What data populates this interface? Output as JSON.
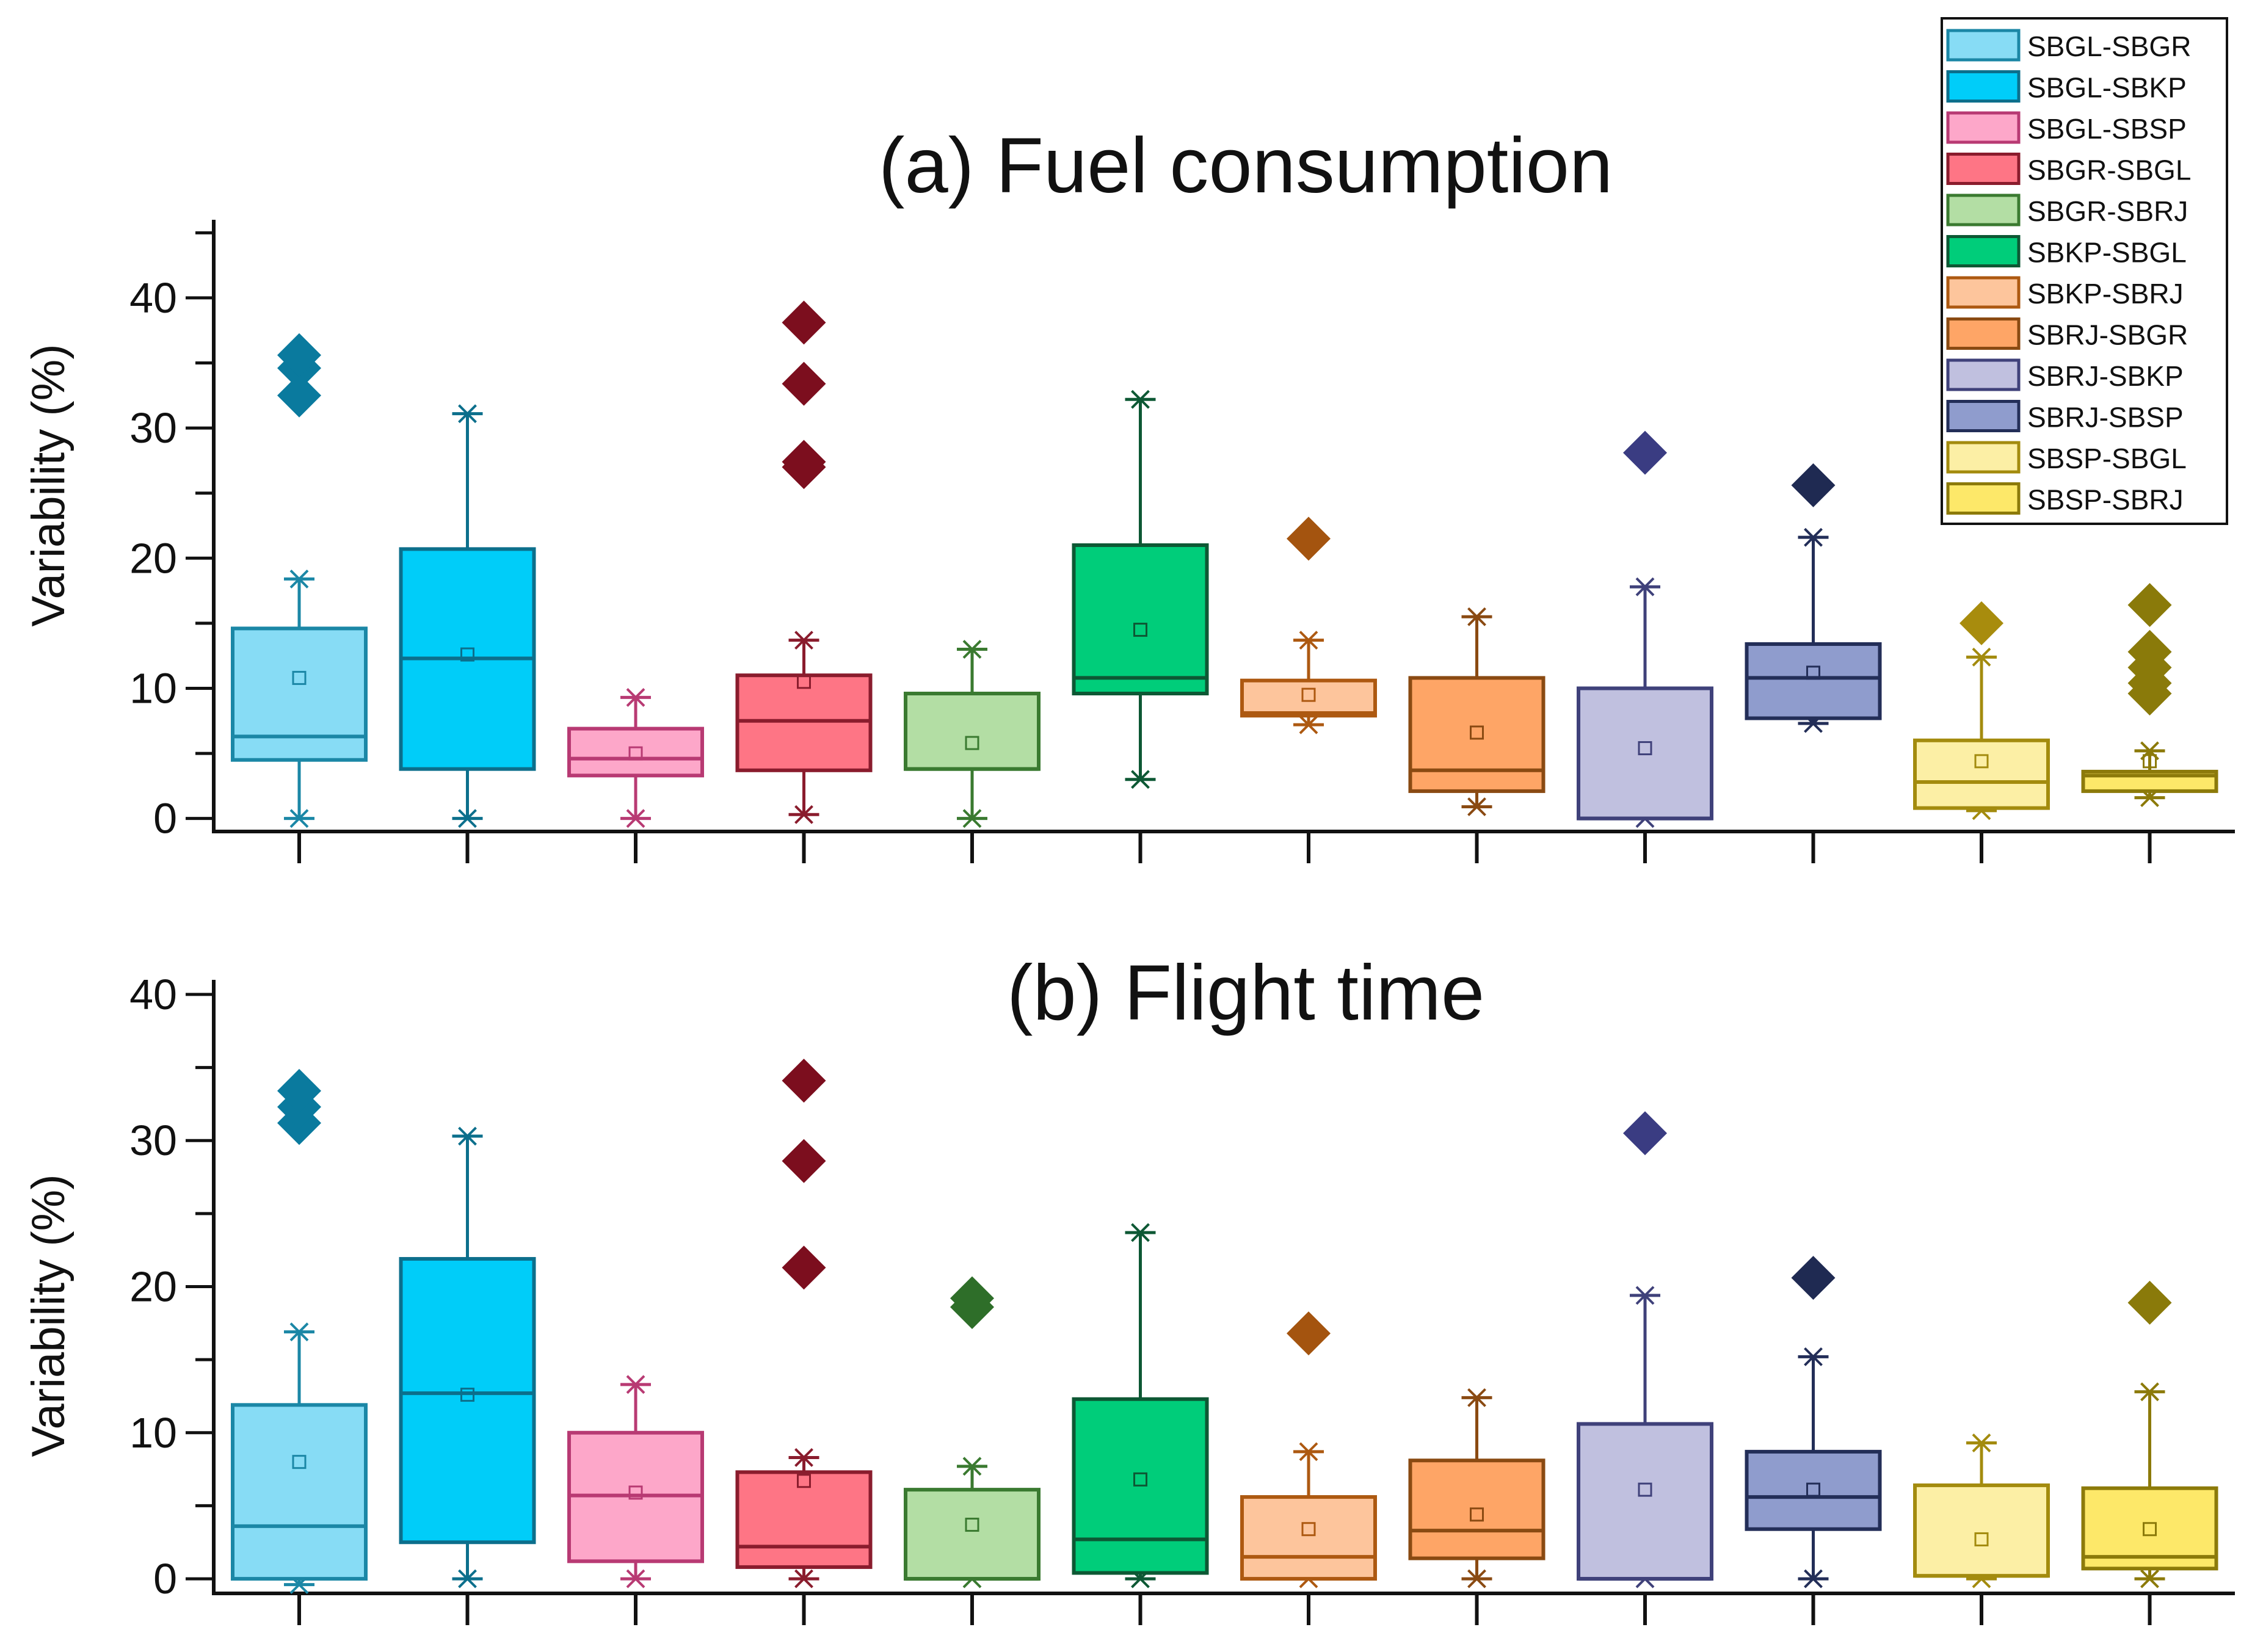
{
  "chart_data": [
    {
      "type": "box",
      "title": "(a) Fuel consumption",
      "xlabel": "",
      "ylabel": "Variability (%)",
      "ylim": [
        -1,
        46
      ],
      "yticks": [
        0,
        10,
        20,
        30,
        40
      ],
      "categories": [
        "SBGL-SBGR",
        "SBGL-SBKP",
        "SBGL-SBSP",
        "SBGR-SBGL",
        "SBGR-SBRJ",
        "SBKP-SBGL",
        "SBKP-SBRJ",
        "SBRJ-SBGR",
        "SBRJ-SBKP",
        "SBRJ-SBSP",
        "SBSP-SBGL",
        "SBSP-SBRJ"
      ],
      "boxes": [
        {
          "min": 0,
          "q1": 4.5,
          "median": 6.3,
          "q3": 14.6,
          "max": 18.4,
          "mean": 10.8,
          "outliers": [
            32.5,
            34.6,
            35.6
          ]
        },
        {
          "min": 0,
          "q1": 3.8,
          "median": 12.3,
          "q3": 20.7,
          "max": 31.1,
          "mean": 12.6,
          "outliers": []
        },
        {
          "min": 0,
          "q1": 3.3,
          "median": 4.6,
          "q3": 6.9,
          "max": 9.3,
          "mean": 5.0,
          "outliers": []
        },
        {
          "min": 0.3,
          "q1": 3.7,
          "median": 7.5,
          "q3": 11.0,
          "max": 13.7,
          "mean": 10.5,
          "outliers": [
            27.0,
            27.4,
            33.4,
            38.1
          ]
        },
        {
          "min": 0,
          "q1": 3.8,
          "median": 3.8,
          "q3": 9.6,
          "max": 13.0,
          "mean": 5.8,
          "outliers": []
        },
        {
          "min": 3.0,
          "q1": 9.6,
          "median": 10.8,
          "q3": 21.0,
          "max": 32.2,
          "mean": 14.5,
          "outliers": []
        },
        {
          "min": 7.2,
          "q1": 7.9,
          "median": 8.1,
          "q3": 10.6,
          "max": 13.7,
          "mean": 9.5,
          "outliers": [
            21.5
          ]
        },
        {
          "min": 0.9,
          "q1": 2.1,
          "median": 3.7,
          "q3": 10.8,
          "max": 15.5,
          "mean": 6.6,
          "outliers": []
        },
        {
          "min": 0,
          "q1": 0,
          "median": 0,
          "q3": 10.0,
          "max": 17.8,
          "mean": 5.4,
          "outliers": [
            28.1
          ]
        },
        {
          "min": 7.3,
          "q1": 7.7,
          "median": 10.8,
          "q3": 13.4,
          "max": 21.6,
          "mean": 11.2,
          "outliers": [
            25.6
          ]
        },
        {
          "min": 0.6,
          "q1": 0.8,
          "median": 2.8,
          "q3": 6.0,
          "max": 12.4,
          "mean": 4.4,
          "outliers": [
            15.0
          ]
        },
        {
          "min": 1.6,
          "q1": 2.1,
          "median": 3.3,
          "q3": 3.6,
          "max": 5.2,
          "mean": 4.4,
          "outliers": [
            9.6,
            10.4,
            11.6,
            12.8,
            16.4
          ]
        }
      ]
    },
    {
      "type": "box",
      "title": "(b) Flight time",
      "xlabel": "",
      "ylabel": "Variability (%)",
      "ylim": [
        -1,
        41
      ],
      "yticks": [
        0,
        10,
        20,
        30,
        40
      ],
      "categories": [
        "SBGL-SBGR",
        "SBGL-SBKP",
        "SBGL-SBSP",
        "SBGR-SBGL",
        "SBGR-SBRJ",
        "SBKP-SBGL",
        "SBKP-SBRJ",
        "SBRJ-SBGR",
        "SBRJ-SBKP",
        "SBRJ-SBSP",
        "SBSP-SBGL",
        "SBSP-SBRJ"
      ],
      "boxes": [
        {
          "min": -0.4,
          "q1": 0,
          "median": 3.6,
          "q3": 11.9,
          "max": 16.9,
          "mean": 8.0,
          "outliers": [
            31.2,
            32.3,
            33.4
          ]
        },
        {
          "min": 0,
          "q1": 2.5,
          "median": 12.7,
          "q3": 21.9,
          "max": 30.3,
          "mean": 12.6,
          "outliers": []
        },
        {
          "min": 0,
          "q1": 1.2,
          "median": 5.7,
          "q3": 10.0,
          "max": 13.3,
          "mean": 5.9,
          "outliers": []
        },
        {
          "min": 0,
          "q1": 0.8,
          "median": 2.2,
          "q3": 7.3,
          "max": 8.3,
          "mean": 6.7,
          "outliers": [
            21.3,
            28.6,
            34.1
          ]
        },
        {
          "min": 0,
          "q1": 0,
          "median": 0,
          "q3": 6.1,
          "max": 7.7,
          "mean": 3.7,
          "outliers": [
            18.6,
            19.2
          ]
        },
        {
          "min": 0,
          "q1": 0.4,
          "median": 2.7,
          "q3": 12.3,
          "max": 23.7,
          "mean": 6.8,
          "outliers": []
        },
        {
          "min": 0,
          "q1": 0,
          "median": 1.5,
          "q3": 5.6,
          "max": 8.7,
          "mean": 3.4,
          "outliers": [
            16.8
          ]
        },
        {
          "min": 0,
          "q1": 1.4,
          "median": 3.3,
          "q3": 8.1,
          "max": 12.4,
          "mean": 4.4,
          "outliers": []
        },
        {
          "min": 0,
          "q1": 0,
          "median": 0,
          "q3": 10.6,
          "max": 19.4,
          "mean": 6.1,
          "outliers": [
            30.5
          ]
        },
        {
          "min": 0,
          "q1": 3.4,
          "median": 5.6,
          "q3": 8.7,
          "max": 15.2,
          "mean": 6.1,
          "outliers": [
            20.6
          ]
        },
        {
          "min": 0,
          "q1": 0.2,
          "median": 0.2,
          "q3": 6.4,
          "max": 9.3,
          "mean": 2.7,
          "outliers": []
        },
        {
          "min": 0,
          "q1": 0.7,
          "median": 1.5,
          "q3": 6.2,
          "max": 12.8,
          "mean": 3.4,
          "outliers": [
            18.9
          ]
        }
      ]
    }
  ],
  "series_style": [
    {
      "fill": "#87dcf5",
      "stroke": "#1b87a6",
      "outlier": "#0a7a9e"
    },
    {
      "fill": "#00cdf9",
      "stroke": "#0c6f8c",
      "outlier": "#0a6f95"
    },
    {
      "fill": "#fda7c9",
      "stroke": "#b83a73",
      "outlier": "#a42060"
    },
    {
      "fill": "#fe7585",
      "stroke": "#8a1c2d",
      "outlier": "#7c0e1e"
    },
    {
      "fill": "#b3dea4",
      "stroke": "#3a7a30",
      "outlier": "#2e6e29"
    },
    {
      "fill": "#00cd7a",
      "stroke": "#0d5834",
      "outlier": "#0a4a2a"
    },
    {
      "fill": "#fdc59c",
      "stroke": "#ad5911",
      "outlier": "#a4540f"
    },
    {
      "fill": "#fea566",
      "stroke": "#8a4a12",
      "outlier": "#7c3e0e"
    },
    {
      "fill": "#c0c0df",
      "stroke": "#3f417a",
      "outlier": "#3a3c82"
    },
    {
      "fill": "#8f9ccd",
      "stroke": "#232e58",
      "outlier": "#1f2a52"
    },
    {
      "fill": "#fcefa5",
      "stroke": "#a38b0e",
      "outlier": "#a88c0d"
    },
    {
      "fill": "#fde869",
      "stroke": "#8c7a0a",
      "outlier": "#8a7a0a"
    }
  ]
}
